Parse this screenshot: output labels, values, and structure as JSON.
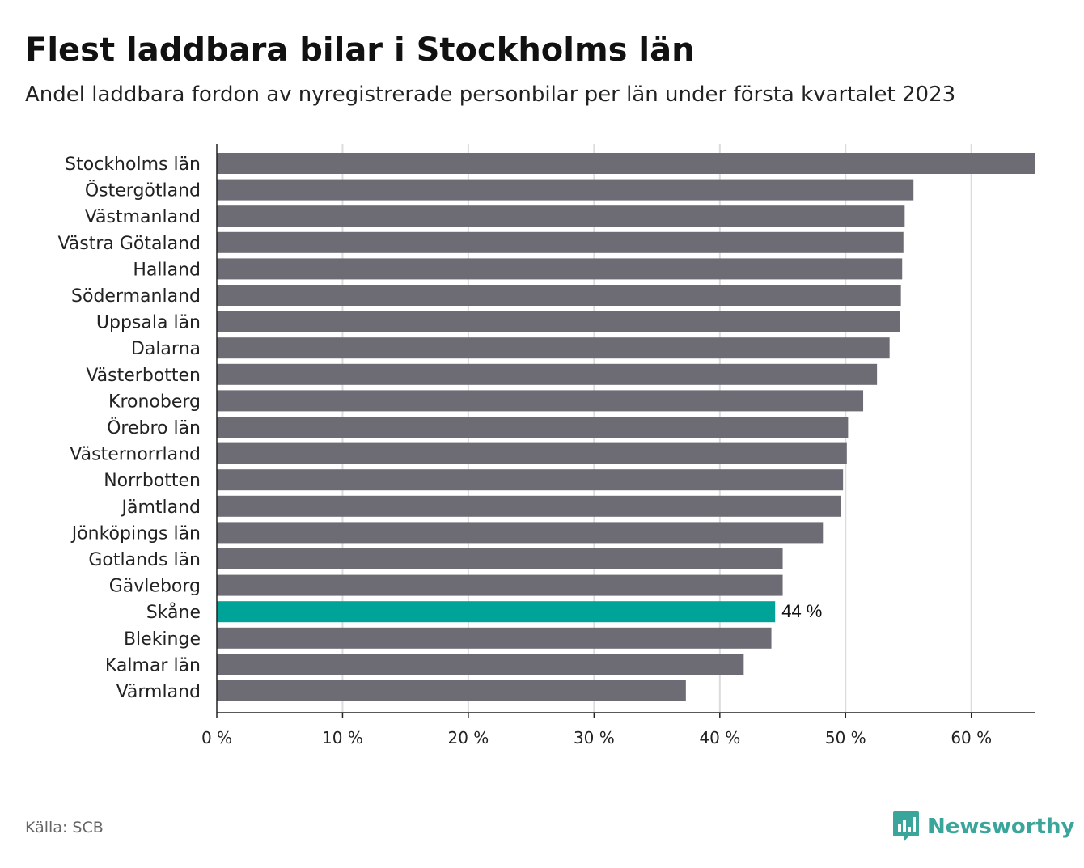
{
  "header": {
    "title": "Flest laddbara bilar i Stockholms län",
    "subtitle": "Andel laddbara fordon av nyregistrerade personbilar per län under första kvartalet 2023"
  },
  "footer": {
    "source": "Källa: SCB",
    "brand": "Newsworthy"
  },
  "colors": {
    "bar": "#6d6c74",
    "highlight": "#00a398",
    "grid": "#dcdcdc",
    "axis": "#222222",
    "brand": "#3aa59a"
  },
  "chart_data": {
    "type": "bar",
    "orientation": "horizontal",
    "categories": [
      "Stockholms län",
      "Östergötland",
      "Västmanland",
      "Västra Götaland",
      "Halland",
      "Södermanland",
      "Uppsala län",
      "Dalarna",
      "Västerbotten",
      "Kronoberg",
      "Örebro län",
      "Västernorrland",
      "Norrbotten",
      "Jämtland",
      "Jönköpings län",
      "Gotlands län",
      "Gävleborg",
      "Skåne",
      "Blekinge",
      "Kalmar län",
      "Värmland"
    ],
    "values": [
      65.1,
      55.4,
      54.7,
      54.6,
      54.5,
      54.4,
      54.3,
      53.5,
      52.5,
      51.4,
      50.2,
      50.1,
      49.8,
      49.6,
      48.2,
      45.0,
      45.0,
      44.4,
      44.1,
      41.9,
      37.3
    ],
    "highlight": "Skåne",
    "data_labels": [
      {
        "category": "Skåne",
        "text": "44 %"
      }
    ],
    "xlim": [
      0,
      65.1
    ],
    "ticks": [
      0,
      10,
      20,
      30,
      40,
      50,
      60
    ],
    "tick_labels": [
      "0 %",
      "10 %",
      "20 %",
      "30 %",
      "40 %",
      "50 %",
      "60 %"
    ],
    "grid": true
  }
}
